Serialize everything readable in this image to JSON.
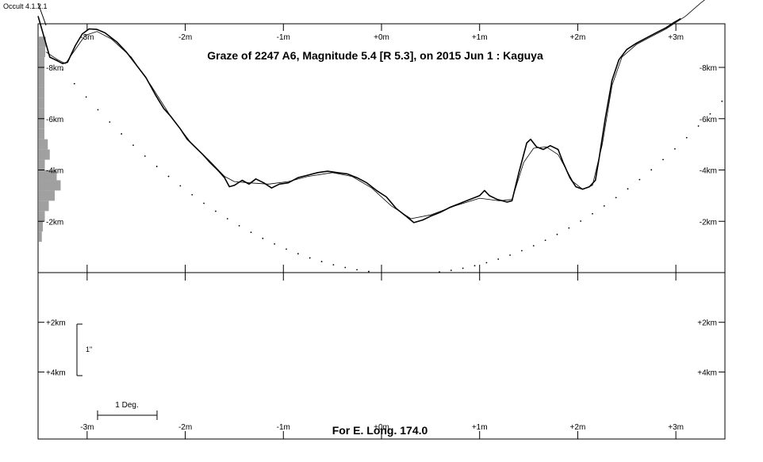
{
  "version_label": "Occult 4.1.2.1",
  "title": "Graze of  2247 A6,  Magnitude 5.4 [R 5.3],  on 2015 Jun  1  :  Kaguya",
  "footer": "For E. Long. 174.0",
  "scale_bar": {
    "vertical_label": "1\"",
    "horizontal_label": "1 Deg."
  },
  "chart_data": {
    "type": "line",
    "title": "Graze of  2247 A6,  Magnitude 5.4 [R 5.3],  on 2015 Jun  1  :  Kaguya",
    "x_unit": "minutes",
    "xlim": [
      -3.5,
      3.5
    ],
    "x_ticks": [
      -3,
      -2,
      -1,
      0,
      1,
      2,
      3
    ],
    "x_tick_labels": [
      "-3m",
      "-2m",
      "-1m",
      "+0m",
      "+1m",
      "+2m",
      "+3m"
    ],
    "upper_panel": {
      "y_unit": "km",
      "ylim": [
        0,
        9.7
      ],
      "y_ticks": [
        2,
        4,
        6,
        8
      ],
      "y_tick_labels": [
        "-2km",
        "-4km",
        "-6km",
        "-8km"
      ]
    },
    "lower_panel": {
      "y_unit": "km",
      "ylim": [
        0,
        6.7
      ],
      "y_ticks": [
        2,
        4
      ],
      "y_tick_labels": [
        "+2km",
        "+4km"
      ]
    },
    "series": [
      {
        "role": "kaguya limb profile",
        "points": [
          [
            -3.5,
            10
          ],
          [
            -3.38,
            8.4
          ],
          [
            -3.3,
            8.25
          ],
          [
            -3.25,
            8.15
          ],
          [
            -3.2,
            8.2
          ],
          [
            -3.12,
            8.85
          ],
          [
            -3.05,
            9.3
          ],
          [
            -2.98,
            9.5
          ],
          [
            -2.9,
            9.48
          ],
          [
            -2.82,
            9.35
          ],
          [
            -2.7,
            9.0
          ],
          [
            -2.6,
            8.6
          ],
          [
            -2.5,
            8.1
          ],
          [
            -2.4,
            7.6
          ],
          [
            -2.3,
            6.9
          ],
          [
            -2.22,
            6.4
          ],
          [
            -2.15,
            6.1
          ],
          [
            -2.05,
            5.6
          ],
          [
            -1.98,
            5.2
          ],
          [
            -1.9,
            4.9
          ],
          [
            -1.82,
            4.6
          ],
          [
            -1.75,
            4.3
          ],
          [
            -1.67,
            4.0
          ],
          [
            -1.6,
            3.7
          ],
          [
            -1.55,
            3.35
          ],
          [
            -1.5,
            3.4
          ],
          [
            -1.42,
            3.6
          ],
          [
            -1.35,
            3.45
          ],
          [
            -1.28,
            3.65
          ],
          [
            -1.2,
            3.5
          ],
          [
            -1.12,
            3.3
          ],
          [
            -1.04,
            3.45
          ],
          [
            -0.95,
            3.5
          ],
          [
            -0.85,
            3.7
          ],
          [
            -0.75,
            3.8
          ],
          [
            -0.65,
            3.9
          ],
          [
            -0.55,
            3.95
          ],
          [
            -0.45,
            3.9
          ],
          [
            -0.35,
            3.85
          ],
          [
            -0.25,
            3.7
          ],
          [
            -0.15,
            3.5
          ],
          [
            -0.05,
            3.2
          ],
          [
            0.05,
            2.95
          ],
          [
            0.15,
            2.5
          ],
          [
            0.25,
            2.2
          ],
          [
            0.33,
            1.95
          ],
          [
            0.42,
            2.05
          ],
          [
            0.5,
            2.2
          ],
          [
            0.6,
            2.35
          ],
          [
            0.7,
            2.55
          ],
          [
            0.8,
            2.7
          ],
          [
            0.9,
            2.85
          ],
          [
            1.0,
            3.0
          ],
          [
            1.05,
            3.2
          ],
          [
            1.1,
            3.0
          ],
          [
            1.18,
            2.85
          ],
          [
            1.28,
            2.75
          ],
          [
            1.33,
            2.8
          ],
          [
            1.4,
            3.9
          ],
          [
            1.48,
            5.05
          ],
          [
            1.52,
            5.2
          ],
          [
            1.58,
            4.9
          ],
          [
            1.65,
            4.8
          ],
          [
            1.72,
            4.95
          ],
          [
            1.8,
            4.8
          ],
          [
            1.85,
            4.3
          ],
          [
            1.92,
            3.7
          ],
          [
            1.98,
            3.35
          ],
          [
            2.05,
            3.25
          ],
          [
            2.12,
            3.35
          ],
          [
            2.18,
            3.6
          ],
          [
            2.22,
            4.5
          ],
          [
            2.28,
            6.0
          ],
          [
            2.35,
            7.5
          ],
          [
            2.42,
            8.3
          ],
          [
            2.5,
            8.7
          ],
          [
            2.6,
            8.95
          ],
          [
            2.7,
            9.15
          ],
          [
            2.8,
            9.35
          ],
          [
            2.9,
            9.55
          ],
          [
            2.98,
            9.75
          ],
          [
            3.05,
            9.9
          ]
        ]
      },
      {
        "role": "smoothed mean limb",
        "points": [
          [
            -3.42,
            8.6
          ],
          [
            -3.3,
            8.3
          ],
          [
            -3.22,
            8.15
          ],
          [
            -3.12,
            8.7
          ],
          [
            -3.02,
            9.25
          ],
          [
            -2.9,
            9.4
          ],
          [
            -2.75,
            9.1
          ],
          [
            -2.55,
            8.4
          ],
          [
            -2.35,
            7.3
          ],
          [
            -2.15,
            6.1
          ],
          [
            -1.95,
            5.1
          ],
          [
            -1.75,
            4.35
          ],
          [
            -1.6,
            3.75
          ],
          [
            -1.5,
            3.55
          ],
          [
            -1.35,
            3.5
          ],
          [
            -1.15,
            3.45
          ],
          [
            -0.95,
            3.55
          ],
          [
            -0.75,
            3.75
          ],
          [
            -0.5,
            3.9
          ],
          [
            -0.3,
            3.75
          ],
          [
            -0.1,
            3.3
          ],
          [
            0.1,
            2.6
          ],
          [
            0.3,
            2.1
          ],
          [
            0.5,
            2.25
          ],
          [
            0.75,
            2.6
          ],
          [
            1.0,
            2.9
          ],
          [
            1.2,
            2.8
          ],
          [
            1.33,
            2.85
          ],
          [
            1.45,
            4.3
          ],
          [
            1.55,
            4.85
          ],
          [
            1.68,
            4.9
          ],
          [
            1.8,
            4.6
          ],
          [
            1.95,
            3.55
          ],
          [
            2.05,
            3.25
          ],
          [
            2.15,
            3.4
          ],
          [
            2.25,
            5.0
          ],
          [
            2.35,
            7.3
          ],
          [
            2.45,
            8.4
          ],
          [
            2.6,
            8.9
          ],
          [
            2.75,
            9.2
          ],
          [
            2.9,
            9.5
          ],
          [
            3.0,
            9.75
          ],
          [
            3.1,
            10.0
          ],
          [
            3.25,
            10.5
          ],
          [
            3.35,
            10.8
          ]
        ]
      }
    ],
    "lower_limit_curve": {
      "role": "dotted lunar limb curve",
      "x_from": -3.25,
      "x_to": 3.5,
      "min_x": 0.25,
      "min_y": -0.05,
      "y_at_left": 7.9
    },
    "side_histogram_bars": [
      {
        "y": 9.0,
        "v": 0.35
      },
      {
        "y": 8.6,
        "v": 0.32
      },
      {
        "y": 8.2,
        "v": 0.28
      },
      {
        "y": 7.8,
        "v": 0.28
      },
      {
        "y": 7.4,
        "v": 0.28
      },
      {
        "y": 7.0,
        "v": 0.28
      },
      {
        "y": 6.6,
        "v": 0.28
      },
      {
        "y": 6.2,
        "v": 0.28
      },
      {
        "y": 5.8,
        "v": 0.28
      },
      {
        "y": 5.4,
        "v": 0.28
      },
      {
        "y": 5.0,
        "v": 0.45
      },
      {
        "y": 4.6,
        "v": 0.55
      },
      {
        "y": 4.2,
        "v": 0.3
      },
      {
        "y": 3.8,
        "v": 0.9
      },
      {
        "y": 3.4,
        "v": 1.1
      },
      {
        "y": 3.0,
        "v": 0.8
      },
      {
        "y": 2.6,
        "v": 0.5
      },
      {
        "y": 2.2,
        "v": 0.3
      },
      {
        "y": 1.8,
        "v": 0.2
      },
      {
        "y": 1.4,
        "v": 0.15
      }
    ],
    "colors": {
      "line": "#000000",
      "histogram": "#a0a0a0",
      "frame": "#000000"
    }
  }
}
